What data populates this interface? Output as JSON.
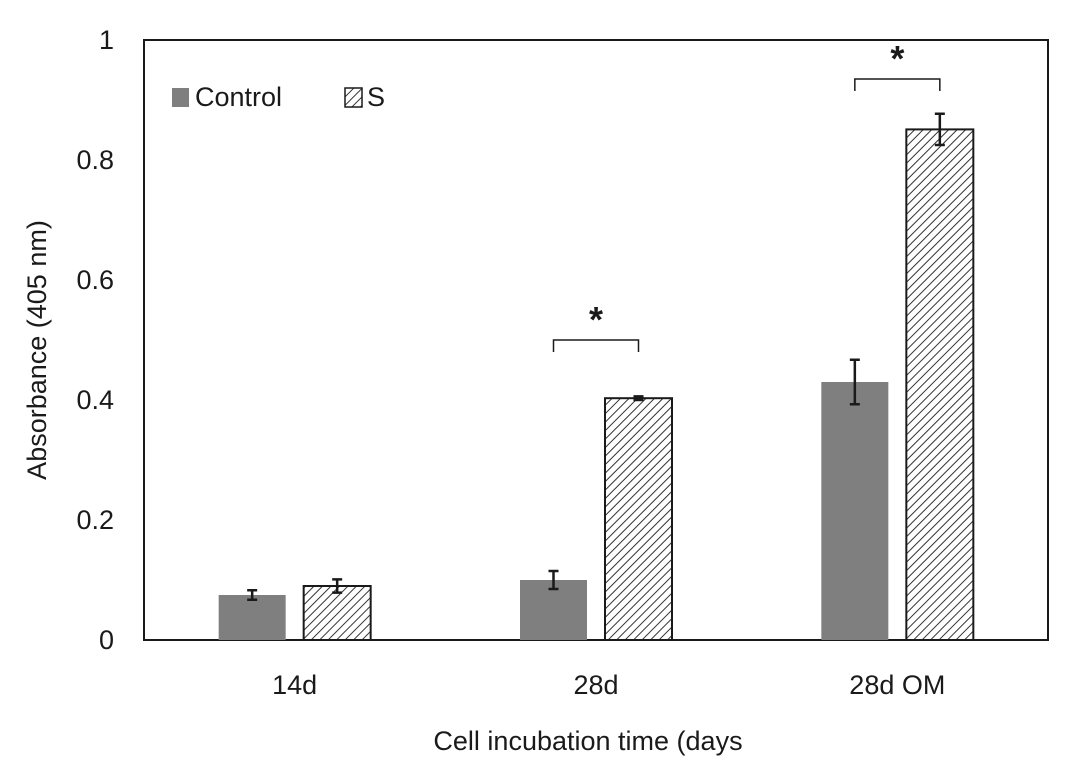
{
  "chart_data": {
    "type": "bar",
    "title": "",
    "xlabel": "Cell incubation time (days",
    "ylabel": "Absorbance (405 nm)",
    "categories": [
      "14d",
      "28d",
      "28d OM"
    ],
    "ylim": [
      0,
      1
    ],
    "yticks": [
      0,
      0.2,
      0.4,
      0.6,
      0.8,
      1
    ],
    "ytick_labels": [
      "0",
      "0.2",
      "0.4",
      "0.6",
      "0.8",
      "1"
    ],
    "grid": false,
    "legend_position": "top-left",
    "series": [
      {
        "name": "Control",
        "pattern": "solid",
        "color": "#7f7f7f",
        "values": [
          0.075,
          0.1,
          0.43
        ],
        "errors": [
          0.008,
          0.015,
          0.037
        ]
      },
      {
        "name": "S",
        "pattern": "hatched",
        "color": "#ffffff",
        "values": [
          0.09,
          0.403,
          0.851
        ],
        "errors": [
          0.011,
          0.003,
          0.026
        ]
      }
    ],
    "significance": [
      {
        "category_index": 1,
        "label": "*",
        "y": 0.5
      },
      {
        "category_index": 2,
        "label": "*",
        "y": 0.935
      }
    ]
  }
}
